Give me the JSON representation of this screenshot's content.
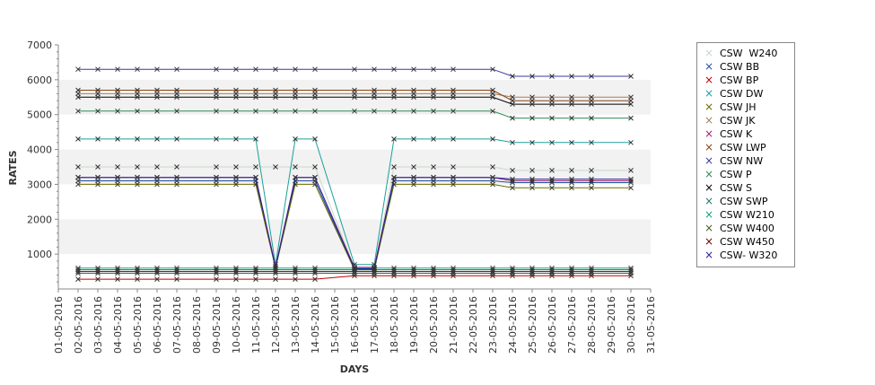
{
  "chart_data": {
    "type": "line",
    "xlabel": "DAYS",
    "ylabel": "RATES",
    "ylim": [
      0,
      7000
    ],
    "yticks": [
      1000,
      2000,
      3000,
      4000,
      5000,
      6000,
      7000
    ],
    "grid": "alternating horizontal bands",
    "legend_position": "right",
    "x_labels": [
      "01-05-2016",
      "02-05-2016",
      "03-05-2016",
      "04-05-2016",
      "05-05-2016",
      "06-05-2016",
      "07-05-2016",
      "08-05-2016",
      "09-05-2016",
      "10-05-2016",
      "11-05-2016",
      "12-05-2016",
      "13-05-2016",
      "14-05-2016",
      "15-05-2016",
      "16-05-2016",
      "17-05-2016",
      "18-05-2016",
      "19-05-2016",
      "20-05-2016",
      "21-05-2016",
      "22-05-2016",
      "23-05-2016",
      "24-05-2016",
      "25-05-2016",
      "26-05-2016",
      "27-05-2016",
      "28-05-2016",
      "29-05-2016",
      "30-05-2016",
      "31-05-2016"
    ],
    "x": [
      "02-05-2016",
      "03-05-2016",
      "04-05-2016",
      "05-05-2016",
      "06-05-2016",
      "07-05-2016",
      "09-05-2016",
      "10-05-2016",
      "11-05-2016",
      "12-05-2016",
      "13-05-2016",
      "14-05-2016",
      "16-05-2016",
      "17-05-2016",
      "18-05-2016",
      "19-05-2016",
      "20-05-2016",
      "21-05-2016",
      "23-05-2016",
      "24-05-2016",
      "25-05-2016",
      "26-05-2016",
      "27-05-2016",
      "28-05-2016",
      "30-05-2016"
    ],
    "series": [
      {
        "name": "CSW  W240",
        "color": "#c8d8c8",
        "values": [
          3500,
          3500,
          3500,
          3500,
          3500,
          3500,
          3500,
          3500,
          3500,
          3500,
          3500,
          3500,
          600,
          600,
          3500,
          3500,
          3500,
          3500,
          3500,
          3400,
          3400,
          3400,
          3400,
          3400,
          3400
        ]
      },
      {
        "name": "CSW BB",
        "color": "#1f4e9e",
        "values": [
          3100,
          3100,
          3100,
          3100,
          3100,
          3100,
          3100,
          3100,
          3100,
          600,
          3100,
          3100,
          550,
          550,
          3100,
          3100,
          3100,
          3100,
          3100,
          3050,
          3050,
          3050,
          3050,
          3050,
          3050
        ]
      },
      {
        "name": "CSW BP",
        "color": "#c00000",
        "values": [
          280,
          280,
          280,
          280,
          280,
          280,
          280,
          280,
          280,
          280,
          280,
          280,
          380,
          380,
          380,
          380,
          380,
          380,
          380,
          380,
          380,
          380,
          380,
          380,
          380
        ]
      },
      {
        "name": "CSW DW",
        "color": "#1aa198",
        "values": [
          4300,
          4300,
          4300,
          4300,
          4300,
          4300,
          4300,
          4300,
          4300,
          700,
          4300,
          4300,
          700,
          700,
          4300,
          4300,
          4300,
          4300,
          4300,
          4200,
          4200,
          4200,
          4200,
          4200,
          4200
        ]
      },
      {
        "name": "CSW JH",
        "color": "#6b6b00",
        "values": [
          3000,
          3000,
          3000,
          3000,
          3000,
          3000,
          3000,
          3000,
          3000,
          600,
          3000,
          3000,
          550,
          550,
          3000,
          3000,
          3000,
          3000,
          3000,
          2900,
          2900,
          2900,
          2900,
          2900,
          2900
        ]
      },
      {
        "name": "CSW JK",
        "color": "#a08060",
        "values": [
          5600,
          5600,
          5600,
          5600,
          5600,
          5600,
          5600,
          5600,
          5600,
          5600,
          5600,
          5600,
          5600,
          5600,
          5600,
          5600,
          5600,
          5600,
          5600,
          5500,
          5500,
          5500,
          5500,
          5500,
          5500
        ]
      },
      {
        "name": "CSW K",
        "color": "#a0206e",
        "values": [
          3200,
          3200,
          3200,
          3200,
          3200,
          3200,
          3200,
          3200,
          3200,
          650,
          3200,
          3200,
          620,
          620,
          3200,
          3200,
          3200,
          3200,
          3200,
          3100,
          3100,
          3100,
          3100,
          3100,
          3100
        ]
      },
      {
        "name": "CSW LWP",
        "color": "#8b4513",
        "values": [
          5700,
          5700,
          5700,
          5700,
          5700,
          5700,
          5700,
          5700,
          5700,
          5700,
          5700,
          5700,
          5700,
          5700,
          5700,
          5700,
          5700,
          5700,
          5700,
          5400,
          5400,
          5400,
          5400,
          5400,
          5400
        ]
      },
      {
        "name": "CSW NW",
        "color": "#3a3aa0",
        "values": [
          6300,
          6300,
          6300,
          6300,
          6300,
          6300,
          6300,
          6300,
          6300,
          6300,
          6300,
          6300,
          6300,
          6300,
          6300,
          6300,
          6300,
          6300,
          6300,
          6100,
          6100,
          6100,
          6100,
          6100,
          6100
        ]
      },
      {
        "name": "CSW P",
        "color": "#2e8b57",
        "values": [
          5100,
          5100,
          5100,
          5100,
          5100,
          5100,
          5100,
          5100,
          5100,
          5100,
          5100,
          5100,
          5100,
          5100,
          5100,
          5100,
          5100,
          5100,
          5100,
          4900,
          4900,
          4900,
          4900,
          4900,
          4900
        ]
      },
      {
        "name": "CSW S",
        "color": "#000000",
        "values": [
          5500,
          5500,
          5500,
          5500,
          5500,
          5500,
          5500,
          5500,
          5500,
          5500,
          5500,
          5500,
          5500,
          5500,
          5500,
          5500,
          5500,
          5500,
          5500,
          5300,
          5300,
          5300,
          5300,
          5300,
          5300
        ]
      },
      {
        "name": "CSW SWP",
        "color": "#1e7a6e",
        "values": [
          450,
          450,
          450,
          450,
          450,
          450,
          450,
          450,
          450,
          450,
          450,
          450,
          450,
          450,
          450,
          450,
          450,
          450,
          450,
          450,
          450,
          450,
          450,
          450,
          450
        ]
      },
      {
        "name": "CSW W210",
        "color": "#10a080",
        "values": [
          600,
          600,
          600,
          600,
          600,
          600,
          600,
          600,
          600,
          600,
          600,
          600,
          600,
          600,
          600,
          600,
          600,
          600,
          600,
          600,
          600,
          600,
          600,
          600,
          600
        ]
      },
      {
        "name": "CSW W400",
        "color": "#4b5e20",
        "values": [
          550,
          550,
          550,
          550,
          550,
          550,
          550,
          550,
          550,
          550,
          550,
          550,
          550,
          550,
          550,
          550,
          550,
          550,
          550,
          550,
          550,
          550,
          550,
          550,
          550
        ]
      },
      {
        "name": "CSW W450",
        "color": "#6b0000",
        "values": [
          500,
          500,
          500,
          500,
          500,
          500,
          500,
          500,
          500,
          500,
          500,
          500,
          500,
          500,
          500,
          500,
          500,
          500,
          500,
          500,
          500,
          500,
          500,
          500,
          500
        ]
      },
      {
        "name": "CSW- W320",
        "color": "#2020a0",
        "values": [
          3200,
          3200,
          3200,
          3200,
          3200,
          3200,
          3200,
          3200,
          3200,
          600,
          3200,
          3200,
          580,
          580,
          3200,
          3200,
          3200,
          3200,
          3200,
          3150,
          3150,
          3150,
          3150,
          3150,
          3150
        ]
      }
    ]
  }
}
